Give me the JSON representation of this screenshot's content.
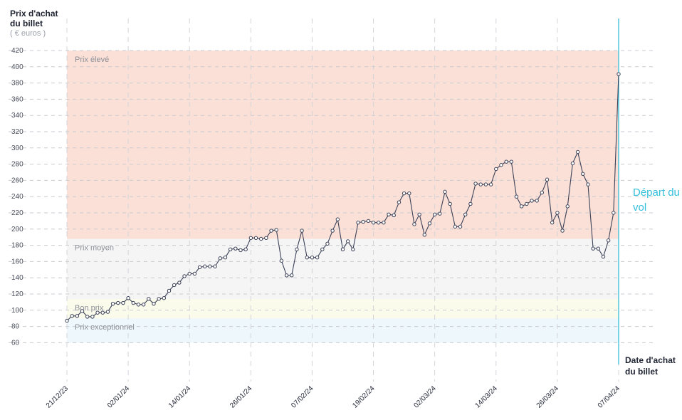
{
  "chart_data": {
    "type": "line",
    "ylabel": "Prix d'achat du billet",
    "yunit": "( € euros )",
    "xlabel": "Date d'achat du billet",
    "ylim": [
      40,
      420
    ],
    "yticks": [
      60,
      80,
      100,
      120,
      140,
      160,
      180,
      200,
      220,
      240,
      260,
      280,
      300,
      320,
      340,
      360,
      380,
      400,
      420
    ],
    "x_start": "2023-12-21",
    "x_end": "2024-04-07",
    "xticks": [
      "21/12/23",
      "02/01/24",
      "14/01/24",
      "26/01/24",
      "07/02/24",
      "19/02/24",
      "02/03/24",
      "14/03/24",
      "26/03/24",
      "07/04/24"
    ],
    "xtick_dates": [
      "2023-12-21",
      "2024-01-02",
      "2024-01-14",
      "2024-01-26",
      "2024-02-07",
      "2024-02-19",
      "2024-03-02",
      "2024-03-14",
      "2024-03-26",
      "2024-04-07"
    ],
    "grid": true,
    "bands": [
      {
        "label": "Prix exceptionnel",
        "from": 60,
        "to": 90,
        "color": "#eef7fb"
      },
      {
        "label": "Bon prix",
        "from": 90,
        "to": 114,
        "color": "#fbfbec"
      },
      {
        "label": "Prix moyen",
        "from": 114,
        "to": 188,
        "color": "#f5f5f5"
      },
      {
        "label": "Prix élevé",
        "from": 188,
        "to": 420,
        "color": "#fbe0d7"
      }
    ],
    "series": [
      {
        "line_color": "#3b4157",
        "points": [
          [
            "2023-12-21",
            87
          ],
          [
            "2023-12-22",
            93
          ],
          [
            "2023-12-23",
            93
          ],
          [
            "2023-12-24",
            99
          ],
          [
            "2023-12-25",
            92
          ],
          [
            "2023-12-26",
            92
          ],
          [
            "2023-12-27",
            97
          ],
          [
            "2023-12-28",
            97
          ],
          [
            "2023-12-29",
            98
          ],
          [
            "2023-12-30",
            108
          ],
          [
            "2023-12-31",
            109
          ],
          [
            "2024-01-01",
            109
          ],
          [
            "2024-01-02",
            115
          ],
          [
            "2024-01-03",
            109
          ],
          [
            "2024-01-04",
            107
          ],
          [
            "2024-01-05",
            107
          ],
          [
            "2024-01-06",
            114
          ],
          [
            "2024-01-07",
            108
          ],
          [
            "2024-01-08",
            114
          ],
          [
            "2024-01-09",
            115
          ],
          [
            "2024-01-10",
            124
          ],
          [
            "2024-01-11",
            131
          ],
          [
            "2024-01-12",
            134
          ],
          [
            "2024-01-13",
            142
          ],
          [
            "2024-01-14",
            145
          ],
          [
            "2024-01-15",
            145
          ],
          [
            "2024-01-16",
            153
          ],
          [
            "2024-01-17",
            154
          ],
          [
            "2024-01-18",
            154
          ],
          [
            "2024-01-19",
            154
          ],
          [
            "2024-01-20",
            164
          ],
          [
            "2024-01-21",
            165
          ],
          [
            "2024-01-22",
            175
          ],
          [
            "2024-01-23",
            176
          ],
          [
            "2024-01-24",
            174
          ],
          [
            "2024-01-25",
            175
          ],
          [
            "2024-01-26",
            189
          ],
          [
            "2024-01-27",
            189
          ],
          [
            "2024-01-28",
            188
          ],
          [
            "2024-01-29",
            189
          ],
          [
            "2024-01-30",
            198
          ],
          [
            "2024-01-31",
            199
          ],
          [
            "2024-02-01",
            161
          ],
          [
            "2024-02-02",
            143
          ],
          [
            "2024-02-03",
            143
          ],
          [
            "2024-02-04",
            175
          ],
          [
            "2024-02-05",
            198
          ],
          [
            "2024-02-06",
            165
          ],
          [
            "2024-02-07",
            165
          ],
          [
            "2024-02-08",
            165
          ],
          [
            "2024-02-09",
            175
          ],
          [
            "2024-02-10",
            182
          ],
          [
            "2024-02-11",
            198
          ],
          [
            "2024-02-12",
            212
          ],
          [
            "2024-02-13",
            175
          ],
          [
            "2024-02-14",
            185
          ],
          [
            "2024-02-15",
            175
          ],
          [
            "2024-02-16",
            208
          ],
          [
            "2024-02-17",
            209
          ],
          [
            "2024-02-18",
            210
          ],
          [
            "2024-02-19",
            208
          ],
          [
            "2024-02-20",
            208
          ],
          [
            "2024-02-21",
            208
          ],
          [
            "2024-02-22",
            218
          ],
          [
            "2024-02-23",
            217
          ],
          [
            "2024-02-24",
            233
          ],
          [
            "2024-02-25",
            244
          ],
          [
            "2024-02-26",
            244
          ],
          [
            "2024-02-27",
            206
          ],
          [
            "2024-02-28",
            218
          ],
          [
            "2024-02-29",
            193
          ],
          [
            "2024-03-01",
            207
          ],
          [
            "2024-03-02",
            218
          ],
          [
            "2024-03-03",
            219
          ],
          [
            "2024-03-04",
            246
          ],
          [
            "2024-03-05",
            231
          ],
          [
            "2024-03-06",
            203
          ],
          [
            "2024-03-07",
            203
          ],
          [
            "2024-03-08",
            218
          ],
          [
            "2024-03-09",
            231
          ],
          [
            "2024-03-10",
            256
          ],
          [
            "2024-03-11",
            255
          ],
          [
            "2024-03-12",
            255
          ],
          [
            "2024-03-13",
            255
          ],
          [
            "2024-03-14",
            274
          ],
          [
            "2024-03-15",
            279
          ],
          [
            "2024-03-16",
            283
          ],
          [
            "2024-03-17",
            283
          ],
          [
            "2024-03-18",
            240
          ],
          [
            "2024-03-19",
            228
          ],
          [
            "2024-03-20",
            231
          ],
          [
            "2024-03-21",
            235
          ],
          [
            "2024-03-22",
            235
          ],
          [
            "2024-03-23",
            245
          ],
          [
            "2024-03-24",
            261
          ],
          [
            "2024-03-25",
            208
          ],
          [
            "2024-03-26",
            220
          ],
          [
            "2024-03-27",
            198
          ],
          [
            "2024-03-28",
            228
          ],
          [
            "2024-03-29",
            281
          ],
          [
            "2024-03-30",
            295
          ],
          [
            "2024-03-31",
            268
          ],
          [
            "2024-04-01",
            255
          ],
          [
            "2024-04-02",
            176
          ],
          [
            "2024-04-03",
            176
          ],
          [
            "2024-04-04",
            166
          ],
          [
            "2024-04-05",
            186
          ],
          [
            "2024-04-06",
            220
          ],
          [
            "2024-04-07",
            391
          ]
        ]
      }
    ],
    "annotation": {
      "label": "Départ du vol",
      "date": "2024-04-07",
      "color": "#35c0dc"
    }
  }
}
